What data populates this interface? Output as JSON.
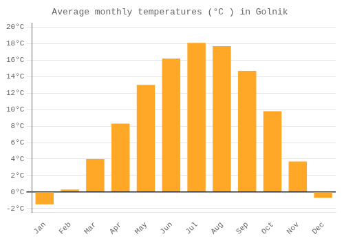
{
  "chart_data": {
    "type": "bar",
    "title": "Average monthly temperatures (°C ) in Golnik",
    "categories": [
      "Jan",
      "Feb",
      "Mar",
      "Apr",
      "May",
      "Jun",
      "Jul",
      "Aug",
      "Sep",
      "Oct",
      "Nov",
      "Dec"
    ],
    "values": [
      -1.5,
      0.3,
      4.0,
      8.3,
      13.0,
      16.2,
      18.1,
      17.7,
      14.7,
      9.8,
      3.7,
      -0.7
    ],
    "color": "#FFA726",
    "ylim": [
      -2.5,
      20.5
    ],
    "yticks": [
      {
        "value": -2,
        "label": "-2°C"
      },
      {
        "value": 0,
        "label": "0°C"
      },
      {
        "value": 2,
        "label": "2°C"
      },
      {
        "value": 4,
        "label": "4°C"
      },
      {
        "value": 6,
        "label": "6°C"
      },
      {
        "value": 8,
        "label": "8°C"
      },
      {
        "value": 10,
        "label": "10°C"
      },
      {
        "value": 12,
        "label": "12°C"
      },
      {
        "value": 14,
        "label": "14°C"
      },
      {
        "value": 16,
        "label": "16°C"
      },
      {
        "value": 18,
        "label": "18°C"
      },
      {
        "value": 20,
        "label": "20°C"
      }
    ],
    "grid": true
  }
}
